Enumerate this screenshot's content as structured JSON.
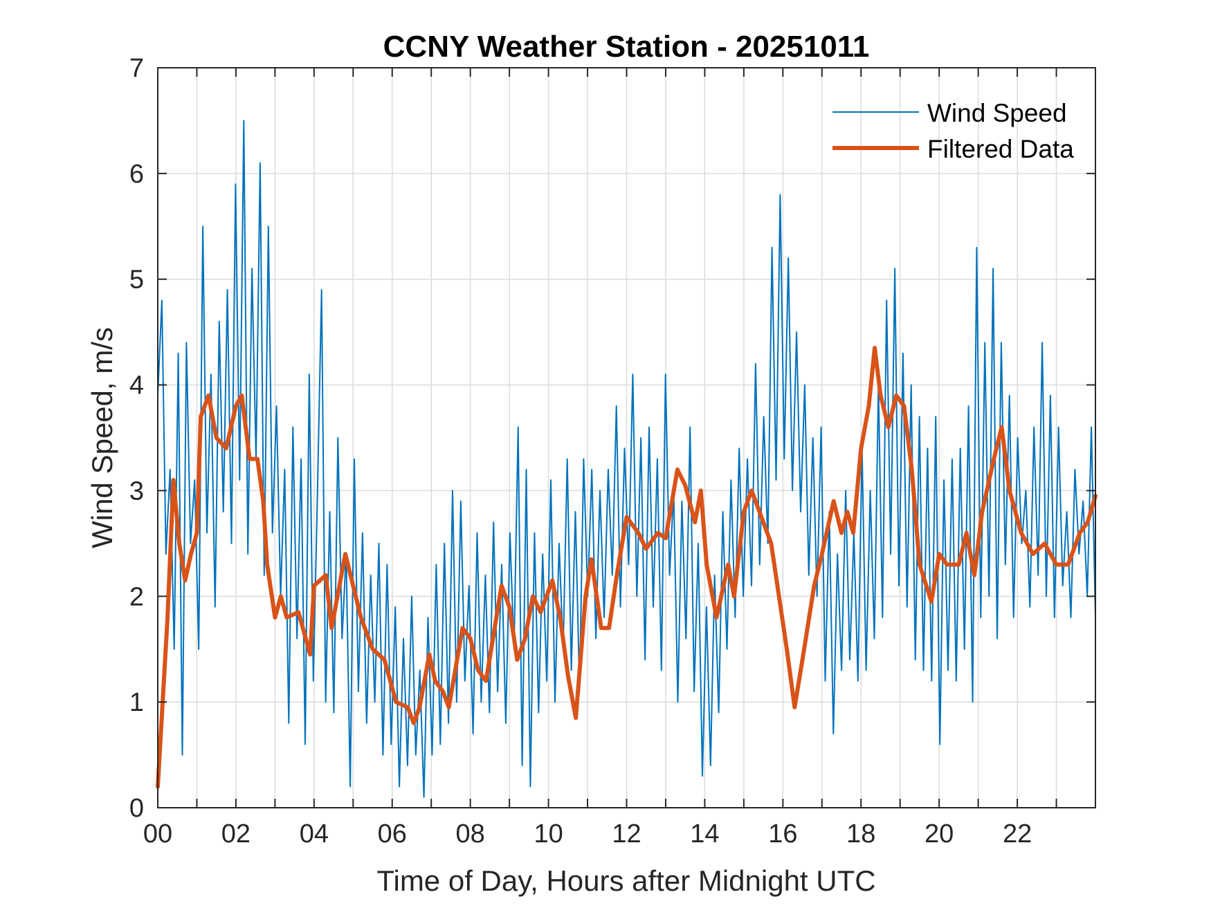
{
  "chart_data": {
    "type": "line",
    "title": "CCNY Weather Station - 20251011",
    "xlabel": "Time of Day, Hours after Midnight UTC",
    "ylabel": "Wind Speed, m/s",
    "xlim": [
      0,
      24
    ],
    "ylim": [
      0,
      7
    ],
    "grid": true,
    "legend_position": "top-right",
    "x_ticks": [
      0,
      2,
      4,
      6,
      8,
      10,
      12,
      14,
      16,
      18,
      20,
      22
    ],
    "x_tick_labels": [
      "00",
      "02",
      "04",
      "06",
      "08",
      "10",
      "12",
      "14",
      "16",
      "18",
      "20",
      "22"
    ],
    "y_ticks": [
      0,
      1,
      2,
      3,
      4,
      5,
      6,
      7
    ],
    "y_tick_labels": [
      "0",
      "1",
      "2",
      "3",
      "4",
      "5",
      "6",
      "7"
    ],
    "series": [
      {
        "name": "Wind Speed",
        "color": "#0072BD",
        "x_step_hours": 0.1,
        "values": [
          3.9,
          4.8,
          2.4,
          3.2,
          1.5,
          4.3,
          0.5,
          4.4,
          2.5,
          3.1,
          1.5,
          5.5,
          2.6,
          4.1,
          1.9,
          4.6,
          2.8,
          4.9,
          2.5,
          5.9,
          3.1,
          6.5,
          2.4,
          5.1,
          3.3,
          6.1,
          2.2,
          5.5,
          2.6,
          3.8,
          2.0,
          3.2,
          0.8,
          3.6,
          1.6,
          3.3,
          0.6,
          4.1,
          1.2,
          3.0,
          4.9,
          1.0,
          2.8,
          0.9,
          3.5,
          1.6,
          2.4,
          0.2,
          3.3,
          1.1,
          2.6,
          0.8,
          2.2,
          1.0,
          2.5,
          0.5,
          2.3,
          0.6,
          1.9,
          0.2,
          1.6,
          0.4,
          2.0,
          0.5,
          1.3,
          0.1,
          1.8,
          0.5,
          2.3,
          0.6,
          2.5,
          0.8,
          3.0,
          1.0,
          2.9,
          1.2,
          2.1,
          0.7,
          2.6,
          1.0,
          2.2,
          0.9,
          2.7,
          1.1,
          2.3,
          0.8,
          2.6,
          1.5,
          3.6,
          0.4,
          3.2,
          0.2,
          2.6,
          0.9,
          2.4,
          1.2,
          3.1,
          1.0,
          2.5,
          1.5,
          3.3,
          1.3,
          2.8,
          1.1,
          3.3,
          2.0,
          3.2,
          1.6,
          3.0,
          1.8,
          3.2,
          2.2,
          3.8,
          1.9,
          3.4,
          2.3,
          4.1,
          2.0,
          3.5,
          1.4,
          3.6,
          1.9,
          3.3,
          1.3,
          4.1,
          2.2,
          3.0,
          1.0,
          2.9,
          1.6,
          3.6,
          1.1,
          2.5,
          0.3,
          1.9,
          0.4,
          2.2,
          0.9,
          2.8,
          1.5,
          3.1,
          1.8,
          3.4,
          2.0,
          3.3,
          2.1,
          4.2,
          2.3,
          3.7,
          2.5,
          5.3,
          3.1,
          5.8,
          3.3,
          5.2,
          3.0,
          4.5,
          2.8,
          4.0,
          2.2,
          3.5,
          2.0,
          3.6,
          1.2,
          2.8,
          0.7,
          2.4,
          1.3,
          3.0,
          1.4,
          2.6,
          1.2,
          3.4,
          1.3,
          3.0,
          1.6,
          4.0,
          1.8,
          4.8,
          2.4,
          5.1,
          2.1,
          4.3,
          1.9,
          4.0,
          1.4,
          3.7,
          1.3,
          3.4,
          1.2,
          3.7,
          0.6,
          3.1,
          1.3,
          3.3,
          1.2,
          3.4,
          1.5,
          3.8,
          1.0,
          5.3,
          1.8,
          4.4,
          2.0,
          5.1,
          1.6,
          4.4,
          2.3,
          3.9,
          1.8,
          3.5,
          2.5,
          3.0,
          1.9,
          3.6,
          2.2,
          4.4,
          2.0,
          3.9,
          1.8,
          3.6,
          2.1,
          2.8,
          1.8,
          3.2,
          2.4,
          2.9,
          2.0,
          3.6,
          1.8
        ]
      },
      {
        "name": "Filtered Data",
        "color": "#D95319",
        "x": [
          0.0,
          0.25,
          0.4,
          0.55,
          0.7,
          0.85,
          1.0,
          1.1,
          1.3,
          1.5,
          1.75,
          2.0,
          2.15,
          2.35,
          2.55,
          2.7,
          2.8,
          3.0,
          3.15,
          3.3,
          3.6,
          3.9,
          4.0,
          4.3,
          4.45,
          4.8,
          5.0,
          5.2,
          5.5,
          5.8,
          6.1,
          6.4,
          6.55,
          6.7,
          6.95,
          7.1,
          7.3,
          7.45,
          7.8,
          8.0,
          8.2,
          8.4,
          8.8,
          9.0,
          9.2,
          9.4,
          9.6,
          9.8,
          10.1,
          10.3,
          10.5,
          10.7,
          10.95,
          11.1,
          11.35,
          11.55,
          11.75,
          12.0,
          12.3,
          12.5,
          12.8,
          13.0,
          13.3,
          13.5,
          13.75,
          13.9,
          14.05,
          14.3,
          14.6,
          14.75,
          15.0,
          15.2,
          15.4,
          15.7,
          15.9,
          16.1,
          16.3,
          16.5,
          16.8,
          17.0,
          17.3,
          17.5,
          17.65,
          17.8,
          18.0,
          18.2,
          18.35,
          18.5,
          18.7,
          18.9,
          19.1,
          19.3,
          19.5,
          19.8,
          20.0,
          20.2,
          20.5,
          20.7,
          20.9,
          21.1,
          21.4,
          21.6,
          21.8,
          22.1,
          22.4,
          22.7,
          23.0,
          23.3,
          23.6,
          23.8,
          24.0
        ],
        "values": [
          0.2,
          1.8,
          3.1,
          2.5,
          2.15,
          2.4,
          2.6,
          3.7,
          3.9,
          3.5,
          3.4,
          3.8,
          3.9,
          3.3,
          3.3,
          2.9,
          2.3,
          1.8,
          2.0,
          1.8,
          1.85,
          1.45,
          2.1,
          2.2,
          1.7,
          2.4,
          2.1,
          1.8,
          1.5,
          1.4,
          1.0,
          0.95,
          0.8,
          0.95,
          1.45,
          1.2,
          1.1,
          0.95,
          1.7,
          1.6,
          1.3,
          1.2,
          2.1,
          1.9,
          1.4,
          1.6,
          2.0,
          1.85,
          2.15,
          1.8,
          1.25,
          0.85,
          2.0,
          2.35,
          1.7,
          1.7,
          2.2,
          2.75,
          2.6,
          2.45,
          2.6,
          2.55,
          3.2,
          3.05,
          2.7,
          3.0,
          2.3,
          1.8,
          2.3,
          2.0,
          2.8,
          3.0,
          2.8,
          2.5,
          2.0,
          1.5,
          0.95,
          1.4,
          2.1,
          2.4,
          2.9,
          2.6,
          2.8,
          2.6,
          3.4,
          3.8,
          4.35,
          3.9,
          3.6,
          3.9,
          3.8,
          3.2,
          2.3,
          1.95,
          2.4,
          2.3,
          2.3,
          2.6,
          2.2,
          2.8,
          3.3,
          3.6,
          3.0,
          2.6,
          2.4,
          2.5,
          2.3,
          2.3,
          2.6,
          2.7,
          2.95
        ]
      }
    ]
  }
}
